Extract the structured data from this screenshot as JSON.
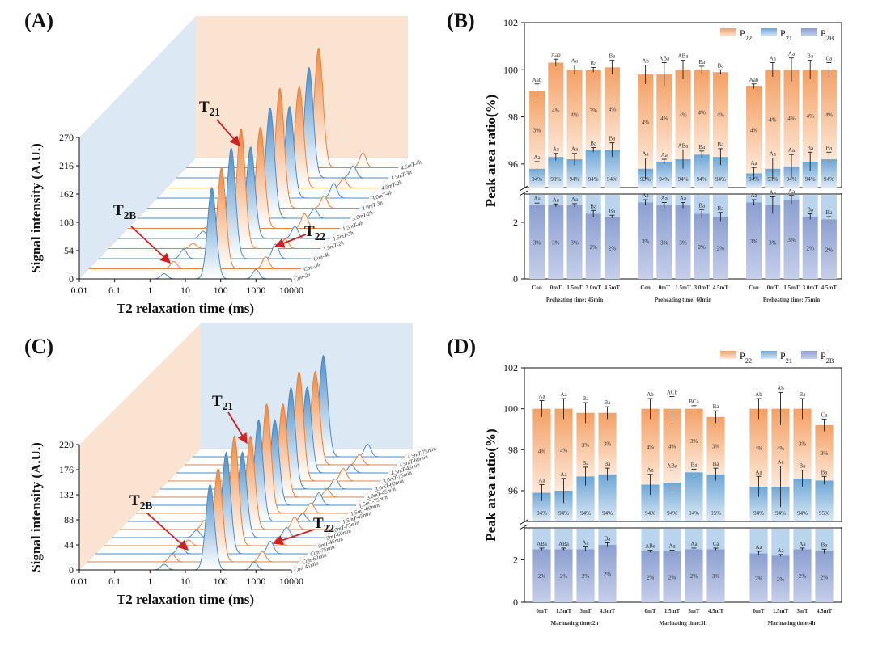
{
  "colors": {
    "orange": "#f3a56e",
    "orange_light": "#fde7d6",
    "blue": "#5f9fd1",
    "blue_light": "#d8e8f5",
    "purple": "#8b9fd0",
    "purple_light": "#c7d0ea",
    "arrow": "#d21f1f"
  },
  "chart_data": [
    {
      "panel": "(A)",
      "type": "area",
      "style": "3d-waterfall",
      "xlabel": "T2 relaxation time (ms)",
      "ylabel": "Signal intensity (A.U.)",
      "xscale": "log",
      "xlim": [
        0.01,
        10000
      ],
      "x_ticks": [
        "0.01",
        "0.1",
        "1",
        "10",
        "100",
        "1000",
        "10000"
      ],
      "y_ticks": [
        "0",
        "54",
        "108",
        "162",
        "216",
        "270"
      ],
      "ylim": [
        0,
        270
      ],
      "series": [
        "Con-2h",
        "Con-3h",
        "Con-4h",
        "1.5mT-2h",
        "1.5mT-3h",
        "1.5mT-4h",
        "3.0mT-2h",
        "3.0mT-3h",
        "3.0mT-4h",
        "4.5mT-2h",
        "4.5mT-3h",
        "4.5mT-4h"
      ],
      "annotations": [
        {
          "main": "T",
          "sub": "21"
        },
        {
          "main": "T",
          "sub": "2B"
        },
        {
          "main": "T",
          "sub": "22"
        }
      ]
    },
    {
      "panel": "(B)",
      "type": "bar",
      "stacked": true,
      "ylabel": "Peak area ratio(%)",
      "ylim": [
        0,
        102
      ],
      "axis_break": [
        3,
        95
      ],
      "y_ticks": [
        "0",
        "2",
        "96",
        "98",
        "100",
        "102"
      ],
      "legend": [
        {
          "main": "P",
          "sub": "22"
        },
        {
          "main": "P",
          "sub": "21"
        },
        {
          "main": "P",
          "sub": "2B"
        }
      ],
      "groups": [
        {
          "label": "Preheating time: 45min",
          "categories": [
            "Con",
            "0mT",
            "1.5mT",
            "3.0mT",
            "4.5mT"
          ],
          "P2B": [
            2.6,
            2.6,
            2.6,
            2.3,
            2.2
          ],
          "P2B_err": [
            0.08,
            0.05,
            0.06,
            0.12,
            0.05
          ],
          "P2B_letters": [
            "Aa",
            "Aa",
            "Aa",
            "Ba",
            "Ba"
          ],
          "P2B_text": [
            "3%",
            "3%",
            "3%",
            "2%",
            "2%"
          ],
          "P21_top": [
            95.8,
            96.3,
            96.2,
            96.6,
            96.6
          ],
          "P21_err": [
            0.3,
            0.15,
            0.25,
            0.1,
            0.3
          ],
          "P21_letters": [
            "Aa",
            "Aa",
            "Aa",
            "Ba",
            "Ba"
          ],
          "P21_text": [
            "94%",
            "93%",
            "94%",
            "94%",
            "94%"
          ],
          "total": [
            99.1,
            100.3,
            100.0,
            100.0,
            100.1
          ],
          "total_err": [
            0.3,
            0.15,
            0.2,
            0.1,
            0.3
          ],
          "total_letters": [
            "Aab",
            "Aab",
            "Aa",
            "Ba",
            "Ba"
          ],
          "P22_text": [
            "3%",
            "4%",
            "4%",
            "3%",
            "4%"
          ]
        },
        {
          "label": "Preheating time: 60min",
          "categories": [
            "Con",
            "0mT",
            "1.5mT",
            "3.0mT",
            "4.5mT"
          ],
          "P2B": [
            2.7,
            2.6,
            2.6,
            2.3,
            2.2
          ],
          "P2B_err": [
            0.1,
            0.1,
            0.1,
            0.15,
            0.15
          ],
          "P2B_letters": [
            "Aa",
            "Aa",
            "Aa",
            "Ba",
            "Ba"
          ],
          "P2B_text": [
            "3%",
            "3%",
            "3%",
            "2%",
            "2%"
          ],
          "P21_top": [
            95.8,
            96.1,
            96.2,
            96.4,
            96.3
          ],
          "P21_err": [
            0.45,
            0.1,
            0.4,
            0.15,
            0.35
          ],
          "P21_letters": [
            "Aa",
            "Aa",
            "ABa",
            "Ba",
            "Ba"
          ],
          "P21_text": [
            "93%",
            "94%",
            "94%",
            "94%",
            "94%"
          ],
          "total": [
            99.8,
            99.8,
            100.0,
            100.0,
            99.9
          ],
          "total_err": [
            0.4,
            0.5,
            0.4,
            0.15,
            0.1
          ],
          "total_letters": [
            "Ab",
            "ABa",
            "ABa",
            "Ba",
            "Ba"
          ],
          "P22_text": [
            "4%",
            "4%",
            "4%",
            "4%",
            "4%"
          ]
        },
        {
          "label": "Preheating time: 75min",
          "categories": [
            "Con",
            "0mT",
            "1.5mT",
            "3.0mT",
            "4.5mT"
          ],
          "P2B": [
            2.7,
            2.6,
            2.8,
            2.2,
            2.1
          ],
          "P2B_err": [
            0.1,
            0.3,
            0.15,
            0.1,
            0.1
          ],
          "P2B_letters": [
            "Aa",
            "Aa",
            "Aa",
            "Ba",
            "Ba"
          ],
          "P2B_text": [
            "3%",
            "3%",
            "3%",
            "2%",
            "2%"
          ],
          "P21_top": [
            95.6,
            95.8,
            95.9,
            96.1,
            96.2
          ],
          "P21_err": [
            0.25,
            0.45,
            0.5,
            0.4,
            0.3
          ],
          "P21_letters": [
            "Aa",
            "Aa",
            "Aa",
            "Ba",
            "Ba"
          ],
          "P21_text": [
            "94%",
            "93%",
            "94%",
            "94%",
            "94%"
          ],
          "total": [
            99.3,
            100.0,
            100.0,
            100.0,
            100.0
          ],
          "total_err": [
            0.1,
            0.3,
            0.5,
            0.4,
            0.3
          ],
          "total_letters": [
            "Aab",
            "Aa",
            "Aa",
            "Ba",
            "Ca"
          ],
          "P22_text": [
            "4%",
            "4%",
            "4%",
            "4%",
            "4%"
          ]
        }
      ]
    },
    {
      "panel": "(C)",
      "type": "area",
      "style": "3d-waterfall",
      "xlabel": "T2 relaxation time (ms)",
      "ylabel": "Signal intensity (A.U.)",
      "xscale": "log",
      "xlim": [
        0.01,
        10000
      ],
      "x_ticks": [
        "0.01",
        "0.1",
        "1",
        "10",
        "100",
        "1000",
        "10000"
      ],
      "y_ticks": [
        "0",
        "44",
        "88",
        "132",
        "176",
        "220"
      ],
      "ylim": [
        0,
        220
      ],
      "series": [
        "Con-45min",
        "Con-60min",
        "Con-75min",
        "0mT-45min",
        "0mT-60min",
        "0mT-75min",
        "1.5mT-45min",
        "1.5mT-60min",
        "1.5mT-75min",
        "3.0mT-45min",
        "3.0mT-60min",
        "3.0mT-75min",
        "4.5mT-45min",
        "4.5mT-60min",
        "4.5mT-75min"
      ],
      "annotations": [
        {
          "main": "T",
          "sub": "21"
        },
        {
          "main": "T",
          "sub": "2B"
        },
        {
          "main": "T",
          "sub": "22"
        }
      ]
    },
    {
      "panel": "(D)",
      "type": "bar",
      "stacked": true,
      "ylabel": "Peak area ratio(%)",
      "ylim": [
        0,
        102
      ],
      "axis_break": [
        3.5,
        94.5
      ],
      "y_ticks": [
        "0",
        "2",
        "96",
        "98",
        "100",
        "102"
      ],
      "legend": [
        {
          "main": "P",
          "sub": "22"
        },
        {
          "main": "P",
          "sub": "21"
        },
        {
          "main": "P",
          "sub": "2B"
        }
      ],
      "groups": [
        {
          "label": "Marinating time:2h",
          "categories": [
            "0mT",
            "1.5mT",
            "3mT",
            "4.5mT"
          ],
          "P2B": [
            2.5,
            2.5,
            2.5,
            2.7
          ],
          "P2B_err": [
            0.05,
            0.05,
            0.1,
            0.1
          ],
          "P2B_letters": [
            "ABa",
            "ABa",
            "Aa",
            "Ba"
          ],
          "P2B_text": [
            "2%",
            "2%",
            "2%",
            "2%"
          ],
          "P21_top": [
            95.9,
            96.0,
            96.7,
            96.8
          ],
          "P21_err": [
            0.4,
            0.6,
            0.45,
            0.3
          ],
          "P21_letters": [
            "Aa",
            "Aa",
            "Ba",
            "Ba"
          ],
          "P21_text": [
            "94%",
            "94%",
            "94%",
            "94%"
          ],
          "total": [
            100.0,
            100.0,
            99.8,
            99.8
          ],
          "total_err": [
            0.4,
            0.5,
            0.5,
            0.3
          ],
          "total_letters": [
            "Aa",
            "Aa",
            "Ba",
            "Ba"
          ],
          "P22_text": [
            "4%",
            "4%",
            "3%",
            "3%"
          ]
        },
        {
          "label": "Marinating time:3h",
          "categories": [
            "0mT",
            "1.5mT",
            "3mT",
            "4.5mT"
          ],
          "P2B": [
            2.4,
            2.4,
            2.5,
            2.5
          ],
          "P2B_err": [
            0.05,
            0.05,
            0.05,
            0.05
          ],
          "P2B_letters": [
            "ABa",
            "Aa",
            "Aa",
            "Ca"
          ],
          "P2B_text": [
            "2%",
            "2%",
            "2%",
            "3%"
          ],
          "P21_top": [
            96.3,
            96.4,
            96.9,
            96.8
          ],
          "P21_err": [
            0.5,
            0.6,
            0.15,
            0.3
          ],
          "P21_letters": [
            "Aa",
            "ABa",
            "Ba",
            "Ba"
          ],
          "P21_text": [
            "94%",
            "94%",
            "94%",
            "95%"
          ],
          "total": [
            100.0,
            100.0,
            100.0,
            99.6
          ],
          "total_err": [
            0.5,
            0.6,
            0.15,
            0.3
          ],
          "total_letters": [
            "Ab",
            "ACb",
            "BCa",
            "Ba"
          ],
          "P22_text": [
            "4%",
            "4%",
            "3%",
            "3%"
          ]
        },
        {
          "label": "Marinating time:4h",
          "categories": [
            "0mT",
            "1.5mT",
            "3mT",
            "4.5mT"
          ],
          "P2B": [
            2.3,
            2.2,
            2.5,
            2.4
          ],
          "P2B_err": [
            0.1,
            0.05,
            0.05,
            0.1
          ],
          "P2B_letters": [
            "Aa",
            "Aa",
            "Aa",
            "Ba"
          ],
          "P2B_text": [
            "2%",
            "2%",
            "2%",
            "2%"
          ],
          "P21_top": [
            96.2,
            96.2,
            96.6,
            96.5
          ],
          "P21_err": [
            0.5,
            1.0,
            0.4,
            0.2
          ],
          "P21_letters": [
            "Aa",
            "Aa",
            "Ba",
            "Ba"
          ],
          "P21_text": [
            "94%",
            "94%",
            "94%",
            "95%"
          ],
          "total": [
            100.0,
            100.0,
            100.0,
            99.2
          ],
          "total_err": [
            0.5,
            0.8,
            0.5,
            0.3
          ],
          "total_letters": [
            "Ab",
            "Ab",
            "Ba",
            "Ca"
          ],
          "P22_text": [
            "4%",
            "4%",
            "3%",
            "3%"
          ]
        }
      ]
    }
  ]
}
